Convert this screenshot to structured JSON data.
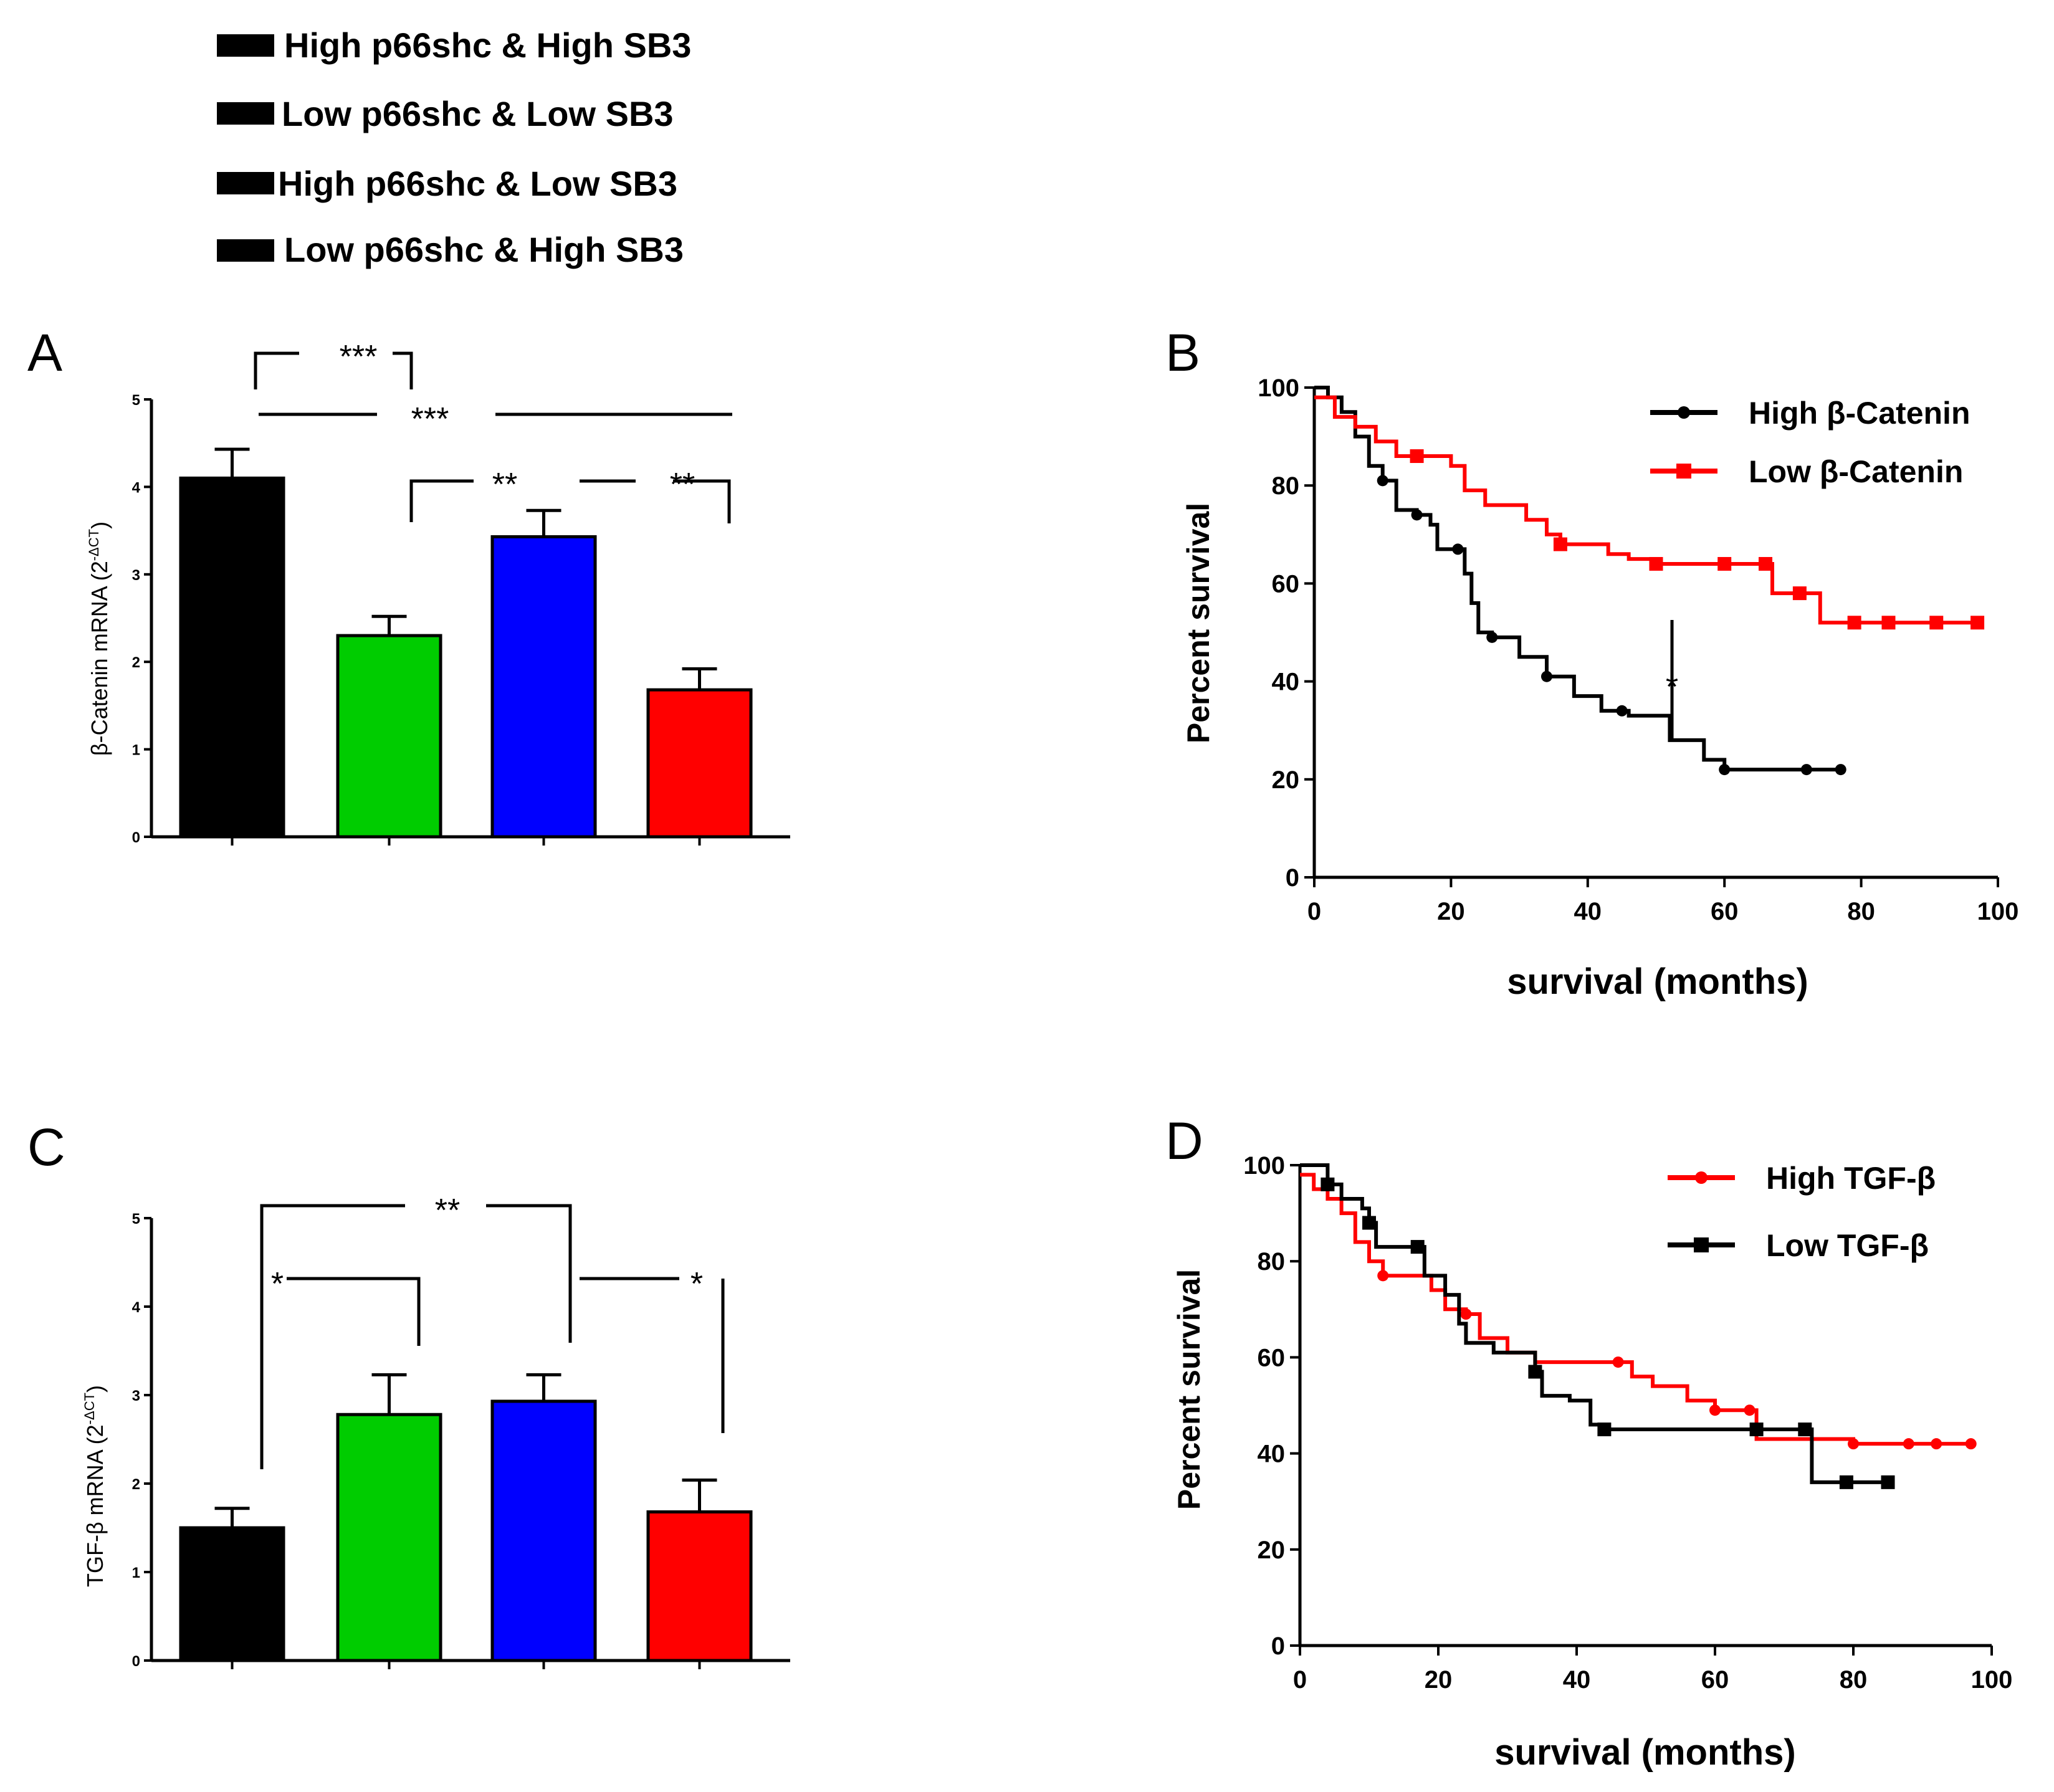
{
  "legend_groups": [
    {
      "label": "High p66shc & High SB3",
      "color": "#000000"
    },
    {
      "label": "Low p66shc & Low SB3",
      "color": "#00cc00"
    },
    {
      "label": "High p66shc & Low SB3",
      "color": "#0000ff"
    },
    {
      "label": "Low p66shc & High SB3",
      "color": "#ff0000"
    }
  ],
  "panels": {
    "A": {
      "letter": "A",
      "ylabel_main": "β-Catenin  mRNA (2",
      "ylabel_sup": "-ΔCT",
      "ylabel_end": ")"
    },
    "B": {
      "letter": "B",
      "xlabel": "survival (months)",
      "ylabel": "Percent survival"
    },
    "C": {
      "letter": "C",
      "ylabel_main": "TGF-β mRNA (2",
      "ylabel_sup": "-ΔCT",
      "ylabel_end": ")"
    },
    "D": {
      "letter": "D",
      "xlabel": "survival (months)",
      "ylabel": "Percent survival"
    }
  },
  "significance": {
    "A": [
      "***",
      "***",
      "**",
      "**"
    ],
    "B": [
      "*"
    ],
    "C": [
      "**",
      "*",
      "*"
    ]
  },
  "chart_data": [
    {
      "panel": "A",
      "type": "bar",
      "categories": [
        "High p66shc & High SB3",
        "Low p66shc & Low SB3",
        "High p66shc & Low SB3",
        "Low p66shc & High SB3"
      ],
      "values": [
        4.1,
        2.3,
        3.43,
        1.68
      ],
      "errors": [
        0.33,
        0.22,
        0.3,
        0.24
      ],
      "colors": [
        "#000000",
        "#00cc00",
        "#0000ff",
        "#ff0000"
      ],
      "ylim": [
        0,
        5
      ],
      "yticks": [
        0,
        1,
        2,
        3,
        4,
        5
      ],
      "ylabel": "β-Catenin  mRNA (2-ΔCT)"
    },
    {
      "panel": "B",
      "type": "line",
      "xlabel": "survival (months)",
      "ylabel": "Percent survival",
      "xlim": [
        0,
        100
      ],
      "ylim": [
        0,
        100
      ],
      "xticks": [
        0,
        20,
        40,
        60,
        80,
        100
      ],
      "yticks": [
        0,
        20,
        40,
        60,
        80,
        100
      ],
      "series": [
        {
          "name": "High β-Catenin",
          "color": "#000000",
          "marker": "circle",
          "points": [
            [
              0,
              100
            ],
            [
              2,
              98
            ],
            [
              4,
              95
            ],
            [
              6,
              90
            ],
            [
              8,
              84
            ],
            [
              10,
              81
            ],
            [
              12,
              75
            ],
            [
              15,
              74
            ],
            [
              17,
              72
            ],
            [
              18,
              67
            ],
            [
              20,
              67
            ],
            [
              21,
              67
            ],
            [
              22,
              62
            ],
            [
              23,
              56
            ],
            [
              24,
              50
            ],
            [
              26,
              49
            ],
            [
              30,
              45
            ],
            [
              34,
              41
            ],
            [
              38,
              37
            ],
            [
              42,
              34
            ],
            [
              46,
              33
            ],
            [
              52,
              28
            ],
            [
              57,
              24
            ],
            [
              60,
              22
            ],
            [
              65,
              22
            ],
            [
              72,
              22
            ],
            [
              77,
              22
            ]
          ],
          "censored": [
            10,
            15,
            21,
            26,
            34,
            45,
            60,
            72,
            77
          ]
        },
        {
          "name": "Low β-Catenin",
          "color": "#ff0000",
          "marker": "square",
          "points": [
            [
              0,
              98
            ],
            [
              3,
              94
            ],
            [
              6,
              92
            ],
            [
              9,
              89
            ],
            [
              12,
              86
            ],
            [
              15,
              86
            ],
            [
              18,
              86
            ],
            [
              20,
              84
            ],
            [
              22,
              79
            ],
            [
              25,
              76
            ],
            [
              28,
              76
            ],
            [
              31,
              73
            ],
            [
              34,
              70
            ],
            [
              36,
              68
            ],
            [
              40,
              68
            ],
            [
              43,
              66
            ],
            [
              46,
              65
            ],
            [
              50,
              64
            ],
            [
              53,
              64
            ],
            [
              57,
              64
            ],
            [
              60,
              64
            ],
            [
              66,
              64
            ],
            [
              67,
              58
            ],
            [
              71,
              58
            ],
            [
              74,
              52
            ],
            [
              79,
              52
            ],
            [
              84,
              52
            ],
            [
              91,
              52
            ],
            [
              97,
              52
            ]
          ],
          "censored": [
            15,
            36,
            50,
            60,
            66,
            71,
            79,
            84,
            91,
            97
          ]
        }
      ]
    },
    {
      "panel": "C",
      "type": "bar",
      "categories": [
        "High p66shc & High SB3",
        "Low p66shc & Low SB3",
        "High p66shc & Low SB3",
        "Low p66shc & High SB3"
      ],
      "values": [
        1.5,
        2.78,
        2.93,
        1.68
      ],
      "errors": [
        0.22,
        0.45,
        0.3,
        0.36
      ],
      "colors": [
        "#000000",
        "#00cc00",
        "#0000ff",
        "#ff0000"
      ],
      "ylim": [
        0,
        5
      ],
      "yticks": [
        0,
        1,
        2,
        3,
        4,
        5
      ],
      "ylabel": "TGF-β mRNA (2-ΔCT)"
    },
    {
      "panel": "D",
      "type": "line",
      "xlabel": "survival (months)",
      "ylabel": "Percent survival",
      "xlim": [
        0,
        100
      ],
      "ylim": [
        0,
        100
      ],
      "xticks": [
        0,
        20,
        40,
        60,
        80,
        100
      ],
      "yticks": [
        0,
        20,
        40,
        60,
        80,
        100
      ],
      "series": [
        {
          "name": "High TGF-β",
          "color": "#ff0000",
          "marker": "circle",
          "points": [
            [
              0,
              98
            ],
            [
              2,
              95
            ],
            [
              4,
              93
            ],
            [
              6,
              90
            ],
            [
              8,
              84
            ],
            [
              10,
              80
            ],
            [
              12,
              77
            ],
            [
              16,
              77
            ],
            [
              19,
              74
            ],
            [
              21,
              70
            ],
            [
              24,
              69
            ],
            [
              26,
              64
            ],
            [
              30,
              61
            ],
            [
              34,
              59
            ],
            [
              40,
              59
            ],
            [
              46,
              59
            ],
            [
              48,
              56
            ],
            [
              51,
              54
            ],
            [
              56,
              51
            ],
            [
              60,
              49
            ],
            [
              65,
              49
            ],
            [
              66,
              43
            ],
            [
              70,
              43
            ],
            [
              80,
              42
            ],
            [
              88,
              42
            ],
            [
              92,
              42
            ],
            [
              97,
              42
            ]
          ],
          "censored": [
            12,
            24,
            46,
            60,
            65,
            80,
            88,
            92,
            97
          ]
        },
        {
          "name": "Low TGF-β",
          "color": "#000000",
          "marker": "square",
          "points": [
            [
              0,
              100
            ],
            [
              4,
              96
            ],
            [
              6,
              93
            ],
            [
              9,
              91
            ],
            [
              10,
              88
            ],
            [
              11,
              83
            ],
            [
              14,
              83
            ],
            [
              17,
              83
            ],
            [
              18,
              77
            ],
            [
              21,
              73
            ],
            [
              23,
              67
            ],
            [
              24,
              63
            ],
            [
              28,
              61
            ],
            [
              34,
              57
            ],
            [
              35,
              52
            ],
            [
              39,
              51
            ],
            [
              42,
              46
            ],
            [
              44,
              45
            ],
            [
              50,
              45
            ],
            [
              60,
              45
            ],
            [
              66,
              45
            ],
            [
              73,
              45
            ],
            [
              74,
              34
            ],
            [
              79,
              34
            ],
            [
              85,
              34
            ]
          ],
          "censored": [
            4,
            10,
            17,
            34,
            44,
            66,
            73,
            79,
            85
          ]
        }
      ]
    }
  ]
}
